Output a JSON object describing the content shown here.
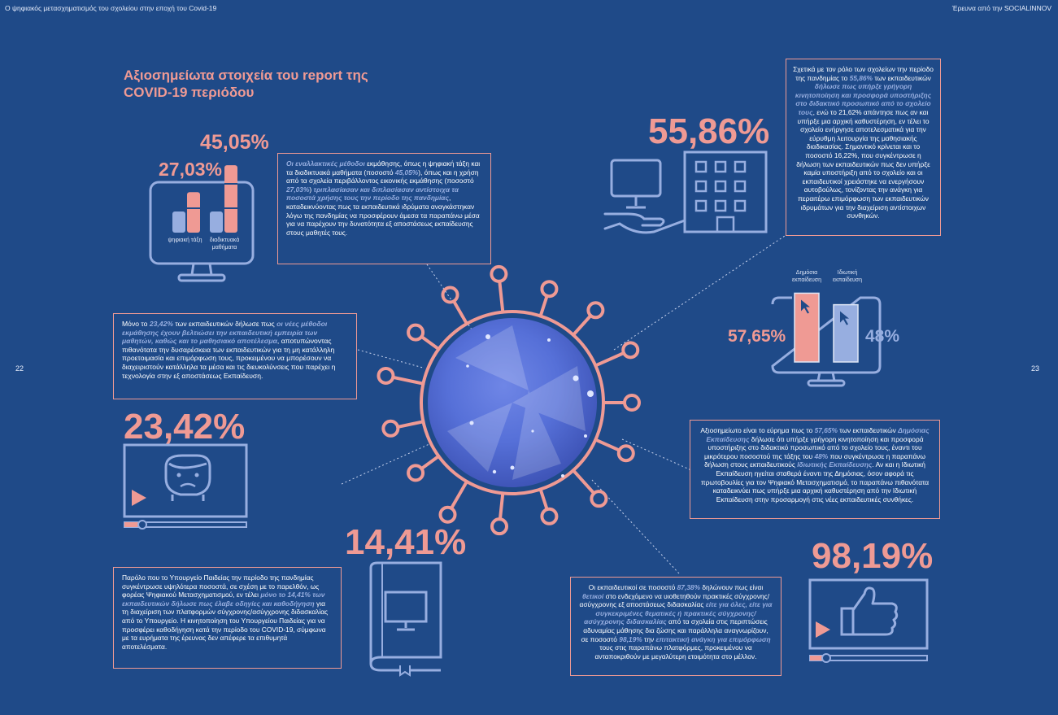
{
  "header": {
    "left": "Ο ψηφιακός μετασχηματισμός του σχολείου στην εποχή του Covid-19",
    "right": "Έρευνα από την SOCIALINNOV"
  },
  "pages": {
    "left": "22",
    "right": "23"
  },
  "title": "Αξιοσημείωτα στοιχεία του report της COVID-19 περιόδου",
  "colors": {
    "background": "#1f4a88",
    "accent": "#ef9a94",
    "light": "#97aee0"
  },
  "stats": {
    "s4505": "45,05%",
    "s2703": "27,03%",
    "s5586": "55,86%",
    "s5765": "57,65%",
    "s48": "48%",
    "s2342": "23,42%",
    "s1441": "14,41%",
    "s9819": "98,19%"
  },
  "mini_chart_1": {
    "labels": [
      "ψηφιακή τάξη",
      "διαδικτυακά μαθήματα"
    ],
    "values": [
      27.03,
      45.05
    ]
  },
  "mini_chart_2": {
    "labels": [
      "Δημόσια εκπαίδευση",
      "Ιδιωτική εκπαίδευση"
    ],
    "values": [
      57.65,
      48
    ]
  },
  "icons": {
    "monitor_chart": "monitor-bar-chart-icon",
    "building": "building-with-monitor-icon",
    "virus": "virus-icon",
    "video_face": "video-player-face-icon",
    "book": "book-with-monitor-icon",
    "thumbs": "video-player-thumbs-up-icon"
  },
  "box1": {
    "p1": "Οι εναλλακτικές μέθοδοι",
    "p2": " εκμάθησης, όπως η ψηφιακή τάξη και τα διαδικτυακά μαθήματα (ποσοστό ",
    "p3": "45,05%",
    "p4": "), όπως και η χρήση από τα σχολεία περιβάλλοντος εικονικής εκμάθησης (ποσοστό ",
    "p5": "27,03%",
    "p6": ") ",
    "p7": "τριπλασίασαν και διπλασίασαν αντίστοιχα τα ποσοστά χρήσης τους την περίοδο της πανδημίας",
    "p8": ", καταδεικνύοντας πως τα εκπαιδευτικά ιδρύματα αναγκάστηκαν λόγω της πανδημίας να προσφέρουν άμεσα τα παραπάνω μέσα για να παρέχουν την δυνατότητα εξ αποστάσεως εκπαίδευσης στους μαθητές τους."
  },
  "box2": {
    "p1": "Σχετικά με τον ρόλο των σχολείων την περίοδο της πανδημίας το ",
    "p2": "55,86%",
    "p3": " των εκπαιδευτικών ",
    "p4": "δήλωσε πως υπήρξε γρήγορη κινητοποίηση και προσφορά υποστήριξης στο διδακτικό προσωπικό από το σχολείο τους",
    "p5": ", ενώ το 21,62% απάντησε πως αν και υπήρξε μια αρχική καθυστέρηση, εν τέλει το σχολείο ενήργησε αποτελεσματικά για την εύρυθμη λειτουργία της μαθησιακής διαδικασίας. Σημαντικό κρίνεται και το ποσοστό 16,22%, που συγκέντρωσε η δήλωση των εκπαιδευτικών πως δεν υπήρξε καμία υποστήριξη από το σχολείο και οι εκπαιδευτικοί χρειάστηκε να ενεργήσουν αυτοβούλως, τονίζοντας την ανάγκη για περαιτέρω επιμόρφωση των εκπαιδευτικών ιδρυμάτων για την διαχείριση αντίστοιχων συνθηκών."
  },
  "box3": {
    "p1": "Μόνο το ",
    "p2": "23,42%",
    "p3": " των εκπαιδευτικών δήλωσε πως ",
    "p4": "οι νέες μέθοδοι εκμάθησης έχουν βελτιώσει την εκπαιδευτική εμπειρία των μαθητών, καθώς και το μαθησιακό αποτέλεσμα",
    "p5": ", αποτυπώνοντας πιθανότατα την δυσαρέσκεια των εκπαιδευτικών για τη μη κατάλληλη προετοιμασία και επιμόρφωση τους, προκειμένου να μπορέσουν να διαχειριστούν κατάλληλα τα μέσα και τις διευκολύνσεις που παρέχει η τεχνολογία στην εξ αποστάσεως Εκπαίδευση."
  },
  "box4": {
    "p1": "Αξιοσημείωτο είναι το εύρημα πως το ",
    "p2": "57,65%",
    "p3": " των εκπαιδευτικών ",
    "p4": "Δημόσιας Εκπαίδευσης",
    "p5": " δήλωσε ότι υπήρξε γρήγορη κινητοποίηση και προσφορά υποστήριξης στο διδακτικό προσωπικό από το σχολείο τους, έναντι του μικρότερου ποσοστού της τάξης του ",
    "p6": "48%",
    "p7": " που συγκέντρωσε η παραπάνω δήλωση στους εκπαιδευτικούς ",
    "p8": "Ιδιωτικής Εκπαίδευσης",
    "p9": ". Αν και η Ιδιωτική Εκπαίδευση ηγείται σταθερά έναντι της Δημόσιας, όσον αφορά τις πρωτοβουλίες για τον Ψηφιακό Μετασχηματισμό, το παραπάνω πιθανότατα καταδεικνύει πως υπήρξε μια αρχική καθυστέρηση από την Ιδιωτική Εκπαίδευση στην προσαρμογή στις νέες εκπαιδευτικές συνθήκες."
  },
  "box5": {
    "p1": "Παρόλο που το Υπουργείο Παιδείας την περίοδο της πανδημίας συγκέντρωσε υψηλότερα ποσοστά, σε σχέση με το παρελθόν, ως φορέας Ψηφιακού Μετασχηματισμού, εν τέλει ",
    "p2": "μόνο το 14,41% των εκπαιδευτικών δήλωσε πως έλαβε οδηγίες και καθοδήγηση",
    "p3": " για τη διαχείριση των πλατφορμών σύγχρονης/ασύγχρονης διδασκαλίας από το Υπουργείο. Η  κινητοποίηση του Υπουργείου Παιδείας για να προσφέρει καθοδήγηση κατά την περίοδο του COVID-19, σύμφωνα με τα ευρήματα της έρευνας δεν απέφερε τα επιθυμητά αποτελέσματα."
  },
  "box6": {
    "p1": "Οι εκπαιδευτικοί σε ποσοστό ",
    "p2": "87,38%",
    "p3": " δηλώνουν πως είναι ",
    "p4": "θετικοί",
    "p5": " στο ενδεχόμενο να υιοθετηθούν πρακτικές σύγχρονης/ασύγχρονης εξ αποστάσεως διδασκαλίας ",
    "p6": "είτε για όλες, είτε για συγκεκριμένες θεματικές ή πρακτικές σύγχρονης/ασύγχρονης διδασκαλίας",
    "p7": " από τα σχολεία στις περιπτώσεις αδυναμίας μάθησης δια ζώσης και παράλληλα αναγνωρίζουν, σε ποσοστό ",
    "p8": "98,19%",
    "p9": " την ",
    "p10": "επιτακτική ανάγκη για επιμόρφωση",
    "p11": " τους στις παραπάνω πλατφόρμες, προκειμένου να ανταποκριθούν με μεγαλύτερη ετοιμότητα στο μέλλον."
  }
}
